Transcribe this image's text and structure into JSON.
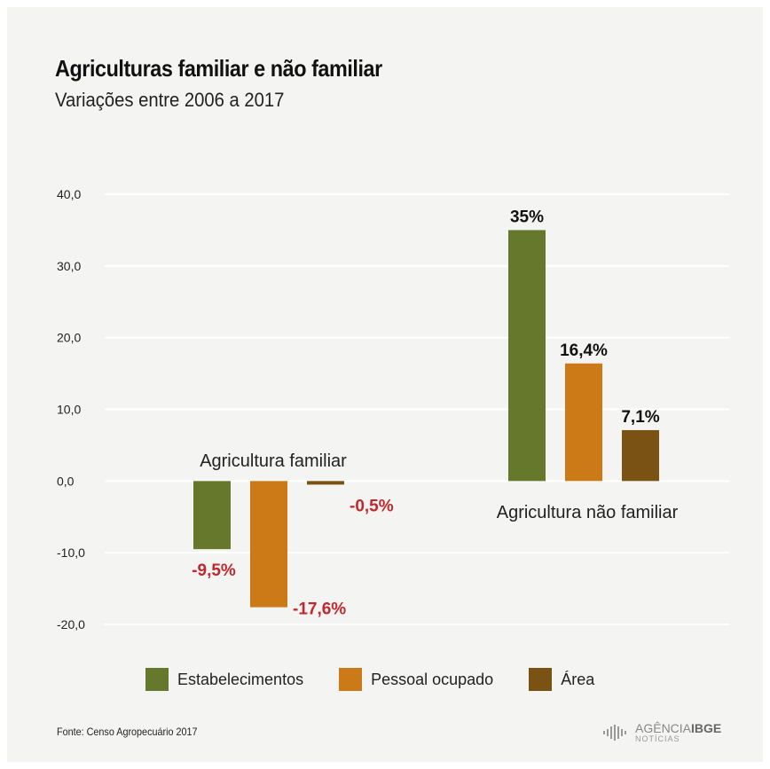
{
  "title": "Agriculturas familiar e não familiar",
  "subtitle": "Variações entre 2006 a 2017",
  "legend": [
    {
      "label": "Estabelecimentos",
      "color": "#66782c"
    },
    {
      "label": "Pessoal ocupado",
      "color": "#cc7a17"
    },
    {
      "label": "Área",
      "color": "#7a5214"
    }
  ],
  "source": "Fonte: Censo Agropecuário 2017",
  "brand": {
    "name_prefix": "AGÊNCIA",
    "name_suffix": "IBGE",
    "sub": "NOTÍCIAS",
    "icon": "ibge-bars-icon"
  },
  "colors": {
    "positive_label": "#111111",
    "negative_label": "#c1272d",
    "grid": "#ffffff"
  },
  "chart_data": {
    "type": "bar",
    "categories": [
      "Agricultura familiar",
      "Agricultura não familiar"
    ],
    "series": [
      {
        "name": "Estabelecimentos",
        "values": [
          -9.5,
          35
        ]
      },
      {
        "name": "Pessoal ocupado",
        "values": [
          -17.6,
          16.4
        ]
      },
      {
        "name": "Área",
        "values": [
          -0.5,
          7.1
        ]
      }
    ],
    "data_labels": [
      [
        "-9,5%",
        "-17,6%",
        "-0,5%"
      ],
      [
        "35%",
        "16,4%",
        "7,1%"
      ]
    ],
    "yticks": [
      40,
      30,
      20,
      10,
      0,
      -10,
      -20
    ],
    "ytick_labels": [
      "40,0",
      "30,0",
      "20,0",
      "10,0",
      "0,0",
      "-10,0",
      "-20,0"
    ],
    "ylim": [
      -20,
      40
    ],
    "grid": true
  }
}
